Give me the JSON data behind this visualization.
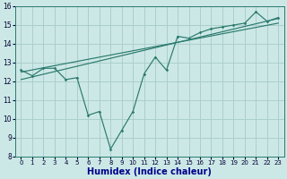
{
  "xlabel": "Humidex (Indice chaleur)",
  "ylabel": "",
  "xlim": [
    -0.5,
    23.5
  ],
  "ylim": [
    8,
    16
  ],
  "xticks": [
    0,
    1,
    2,
    3,
    4,
    5,
    6,
    7,
    8,
    9,
    10,
    11,
    12,
    13,
    14,
    15,
    16,
    17,
    18,
    19,
    20,
    21,
    22,
    23
  ],
  "yticks": [
    8,
    9,
    10,
    11,
    12,
    13,
    14,
    15,
    16
  ],
  "bg_color": "#cce8e6",
  "grid_color": "#aacfcc",
  "line_color": "#2a7a6e",
  "line1_x": [
    0,
    1,
    2,
    3,
    4,
    5,
    6,
    7,
    8,
    9,
    10,
    11,
    12,
    13,
    14,
    15,
    16,
    17,
    18,
    19,
    20,
    21,
    22,
    23
  ],
  "line1_y": [
    12.6,
    12.3,
    12.7,
    12.7,
    12.1,
    12.2,
    10.2,
    10.4,
    8.4,
    9.4,
    10.4,
    12.4,
    13.3,
    12.6,
    14.4,
    14.3,
    14.6,
    14.8,
    14.9,
    15.0,
    15.1,
    15.7,
    15.2,
    15.4
  ],
  "trend_x": [
    0,
    23
  ],
  "trend_y": [
    12.1,
    15.35
  ],
  "trend2_x": [
    0,
    23
  ],
  "trend2_y": [
    12.5,
    15.1
  ],
  "xlabel_color": "#00008b",
  "xlabel_fontsize": 7,
  "tick_fontsize": 5,
  "tick_color": "#000033"
}
